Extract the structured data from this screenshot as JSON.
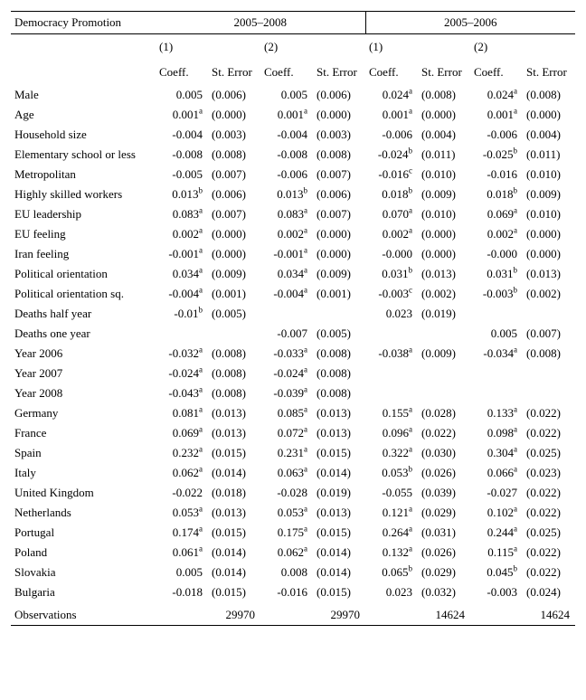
{
  "header": {
    "title": "Democracy Promotion",
    "period_a": "2005–2008",
    "period_b": "2005–2006",
    "model1": "(1)",
    "model2": "(2)",
    "coeff": "Coeff.",
    "se": "St. Error"
  },
  "rows": [
    {
      "label": "Male",
      "a1": {
        "c": "0.005",
        "s": null,
        "se": "(0.006)"
      },
      "a2": {
        "c": "0.005",
        "s": null,
        "se": "(0.006)"
      },
      "b1": {
        "c": "0.024",
        "s": "a",
        "se": "(0.008)"
      },
      "b2": {
        "c": "0.024",
        "s": "a",
        "se": "(0.008)"
      }
    },
    {
      "label": "Age",
      "a1": {
        "c": "0.001",
        "s": "a",
        "se": "(0.000)"
      },
      "a2": {
        "c": "0.001",
        "s": "a",
        "se": "(0.000)"
      },
      "b1": {
        "c": "0.001",
        "s": "a",
        "se": "(0.000)"
      },
      "b2": {
        "c": "0.001",
        "s": "a",
        "se": "(0.000)"
      }
    },
    {
      "label": "Household size",
      "a1": {
        "c": "-0.004",
        "s": null,
        "se": "(0.003)"
      },
      "a2": {
        "c": "-0.004",
        "s": null,
        "se": "(0.003)"
      },
      "b1": {
        "c": "-0.006",
        "s": null,
        "se": "(0.004)"
      },
      "b2": {
        "c": "-0.006",
        "s": null,
        "se": "(0.004)"
      }
    },
    {
      "label": "Elementary school or less",
      "a1": {
        "c": "-0.008",
        "s": null,
        "se": "(0.008)"
      },
      "a2": {
        "c": "-0.008",
        "s": null,
        "se": "(0.008)"
      },
      "b1": {
        "c": "-0.024",
        "s": "b",
        "se": "(0.011)"
      },
      "b2": {
        "c": "-0.025",
        "s": "b",
        "se": "(0.011)"
      }
    },
    {
      "label": "Metropolitan",
      "a1": {
        "c": "-0.005",
        "s": null,
        "se": "(0.007)"
      },
      "a2": {
        "c": "-0.006",
        "s": null,
        "se": "(0.007)"
      },
      "b1": {
        "c": "-0.016",
        "s": "c",
        "se": "(0.010)"
      },
      "b2": {
        "c": "-0.016",
        "s": null,
        "se": "(0.010)"
      }
    },
    {
      "label": "Highly skilled workers",
      "a1": {
        "c": "0.013",
        "s": "b",
        "se": "(0.006)"
      },
      "a2": {
        "c": "0.013",
        "s": "b",
        "se": "(0.006)"
      },
      "b1": {
        "c": "0.018",
        "s": "b",
        "se": "(0.009)"
      },
      "b2": {
        "c": "0.018",
        "s": "b",
        "se": "(0.009)"
      }
    },
    {
      "label": "EU leadership",
      "a1": {
        "c": "0.083",
        "s": "a",
        "se": "(0.007)"
      },
      "a2": {
        "c": "0.083",
        "s": "a",
        "se": "(0.007)"
      },
      "b1": {
        "c": "0.070",
        "s": "a",
        "se": "(0.010)"
      },
      "b2": {
        "c": "0.069",
        "s": "a",
        "se": "(0.010)"
      }
    },
    {
      "label": "EU feeling",
      "a1": {
        "c": "0.002",
        "s": "a",
        "se": "(0.000)"
      },
      "a2": {
        "c": "0.002",
        "s": "a",
        "se": "(0.000)"
      },
      "b1": {
        "c": "0.002",
        "s": "a",
        "se": "(0.000)"
      },
      "b2": {
        "c": "0.002",
        "s": "a",
        "se": "(0.000)"
      }
    },
    {
      "label": "Iran feeling",
      "a1": {
        "c": "-0.001",
        "s": "a",
        "se": "(0.000)"
      },
      "a2": {
        "c": "-0.001",
        "s": "a",
        "se": "(0.000)"
      },
      "b1": {
        "c": "-0.000",
        "s": null,
        "se": "(0.000)"
      },
      "b2": {
        "c": "-0.000",
        "s": null,
        "se": "(0.000)"
      }
    },
    {
      "label": "Political orientation",
      "a1": {
        "c": "0.034",
        "s": "a",
        "se": "(0.009)"
      },
      "a2": {
        "c": "0.034",
        "s": "a",
        "se": "(0.009)"
      },
      "b1": {
        "c": "0.031",
        "s": "b",
        "se": "(0.013)"
      },
      "b2": {
        "c": "0.031",
        "s": "b",
        "se": "(0.013)"
      }
    },
    {
      "label": "Political orientation sq.",
      "a1": {
        "c": "-0.004",
        "s": "a",
        "se": "(0.001)"
      },
      "a2": {
        "c": "-0.004",
        "s": "a",
        "se": "(0.001)"
      },
      "b1": {
        "c": "-0.003",
        "s": "c",
        "se": "(0.002)"
      },
      "b2": {
        "c": "-0.003",
        "s": "b",
        "se": "(0.002)"
      }
    },
    {
      "label": "Deaths half year",
      "a1": {
        "c": "-0.01",
        "s": "b",
        "se": "(0.005)"
      },
      "a2": {
        "c": "",
        "s": null,
        "se": ""
      },
      "b1": {
        "c": "0.023",
        "s": null,
        "se": "(0.019)"
      },
      "b2": {
        "c": "",
        "s": null,
        "se": ""
      }
    },
    {
      "label": "Deaths one year",
      "a1": {
        "c": "",
        "s": null,
        "se": ""
      },
      "a2": {
        "c": "-0.007",
        "s": null,
        "se": "(0.005)"
      },
      "b1": {
        "c": "",
        "s": null,
        "se": ""
      },
      "b2": {
        "c": "0.005",
        "s": null,
        "se": "(0.007)"
      }
    },
    {
      "label": "Year 2006",
      "a1": {
        "c": "-0.032",
        "s": "a",
        "se": "(0.008)"
      },
      "a2": {
        "c": "-0.033",
        "s": "a",
        "se": "(0.008)"
      },
      "b1": {
        "c": "-0.038",
        "s": "a",
        "se": "(0.009)"
      },
      "b2": {
        "c": "-0.034",
        "s": "a",
        "se": "(0.008)"
      }
    },
    {
      "label": "Year 2007",
      "a1": {
        "c": "-0.024",
        "s": "a",
        "se": "(0.008)"
      },
      "a2": {
        "c": "-0.024",
        "s": "a",
        "se": "(0.008)"
      },
      "b1": {
        "c": "",
        "s": null,
        "se": ""
      },
      "b2": {
        "c": "",
        "s": null,
        "se": ""
      }
    },
    {
      "label": "Year 2008",
      "a1": {
        "c": "-0.043",
        "s": "a",
        "se": "(0.008)"
      },
      "a2": {
        "c": "-0.039",
        "s": "a",
        "se": "(0.008)"
      },
      "b1": {
        "c": "",
        "s": null,
        "se": ""
      },
      "b2": {
        "c": "",
        "s": null,
        "se": ""
      }
    },
    {
      "label": "Germany",
      "a1": {
        "c": "0.081",
        "s": "a",
        "se": "(0.013)"
      },
      "a2": {
        "c": "0.085",
        "s": "a",
        "se": "(0.013)"
      },
      "b1": {
        "c": "0.155",
        "s": "a",
        "se": "(0.028)"
      },
      "b2": {
        "c": "0.133",
        "s": "a",
        "se": "(0.022)"
      }
    },
    {
      "label": "France",
      "a1": {
        "c": "0.069",
        "s": "a",
        "se": "(0.013)"
      },
      "a2": {
        "c": "0.072",
        "s": "a",
        "se": "(0.013)"
      },
      "b1": {
        "c": "0.096",
        "s": "a",
        "se": "(0.022)"
      },
      "b2": {
        "c": "0.098",
        "s": "a",
        "se": "(0.022)"
      }
    },
    {
      "label": "Spain",
      "a1": {
        "c": "0.232",
        "s": "a",
        "se": "(0.015)"
      },
      "a2": {
        "c": "0.231",
        "s": "a",
        "se": "(0.015)"
      },
      "b1": {
        "c": "0.322",
        "s": "a",
        "se": "(0.030)"
      },
      "b2": {
        "c": "0.304",
        "s": "a",
        "se": "(0.025)"
      }
    },
    {
      "label": "Italy",
      "a1": {
        "c": "0.062",
        "s": "a",
        "se": "(0.014)"
      },
      "a2": {
        "c": "0.063",
        "s": "a",
        "se": "(0.014)"
      },
      "b1": {
        "c": "0.053",
        "s": "b",
        "se": "(0.026)"
      },
      "b2": {
        "c": "0.066",
        "s": "a",
        "se": "(0.023)"
      }
    },
    {
      "label": "United Kingdom",
      "a1": {
        "c": "-0.022",
        "s": null,
        "se": "(0.018)"
      },
      "a2": {
        "c": "-0.028",
        "s": null,
        "se": "(0.019)"
      },
      "b1": {
        "c": "-0.055",
        "s": null,
        "se": "(0.039)"
      },
      "b2": {
        "c": "-0.027",
        "s": null,
        "se": "(0.022)"
      }
    },
    {
      "label": "Netherlands",
      "a1": {
        "c": "0.053",
        "s": "a",
        "se": "(0.013)"
      },
      "a2": {
        "c": "0.053",
        "s": "a",
        "se": "(0.013)"
      },
      "b1": {
        "c": "0.121",
        "s": "a",
        "se": "(0.029)"
      },
      "b2": {
        "c": "0.102",
        "s": "a",
        "se": "(0.022)"
      }
    },
    {
      "label": "Portugal",
      "a1": {
        "c": "0.174",
        "s": "a",
        "se": "(0.015)"
      },
      "a2": {
        "c": "0.175",
        "s": "a",
        "se": "(0.015)"
      },
      "b1": {
        "c": "0.264",
        "s": "a",
        "se": "(0.031)"
      },
      "b2": {
        "c": "0.244",
        "s": "a",
        "se": "(0.025)"
      }
    },
    {
      "label": "Poland",
      "a1": {
        "c": "0.061",
        "s": "a",
        "se": "(0.014)"
      },
      "a2": {
        "c": "0.062",
        "s": "a",
        "se": "(0.014)"
      },
      "b1": {
        "c": "0.132",
        "s": "a",
        "se": "(0.026)"
      },
      "b2": {
        "c": "0.115",
        "s": "a",
        "se": "(0.022)"
      }
    },
    {
      "label": "Slovakia",
      "a1": {
        "c": "0.005",
        "s": null,
        "se": "(0.014)"
      },
      "a2": {
        "c": "0.008",
        "s": null,
        "se": "(0.014)"
      },
      "b1": {
        "c": "0.065",
        "s": "b",
        "se": "(0.029)"
      },
      "b2": {
        "c": "0.045",
        "s": "b",
        "se": "(0.022)"
      }
    },
    {
      "label": "Bulgaria",
      "a1": {
        "c": "-0.018",
        "s": null,
        "se": "(0.015)"
      },
      "a2": {
        "c": "-0.016",
        "s": null,
        "se": "(0.015)"
      },
      "b1": {
        "c": "0.023",
        "s": null,
        "se": "(0.032)"
      },
      "b2": {
        "c": "-0.003",
        "s": null,
        "se": "(0.024)"
      }
    }
  ],
  "obs": {
    "label": "Observations",
    "a1": "29970",
    "a2": "29970",
    "b1": "14624",
    "b2": "14624"
  }
}
